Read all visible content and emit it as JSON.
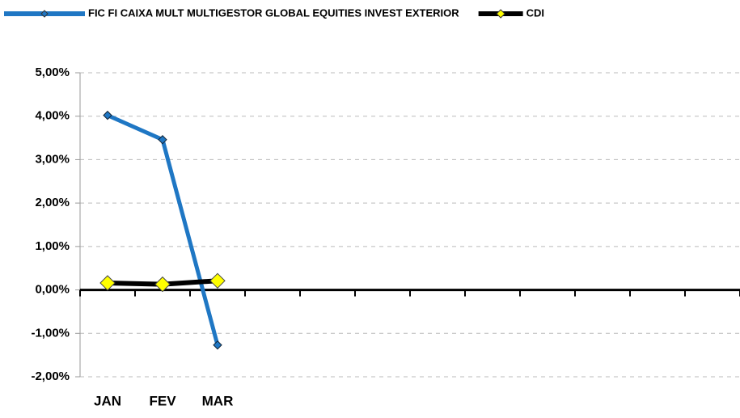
{
  "chart_data": {
    "type": "line",
    "categories": [
      "JAN",
      "FEV",
      "MAR",
      null,
      null,
      null,
      null,
      null,
      null,
      null,
      null,
      null
    ],
    "series": [
      {
        "name": "FIC FI CAIXA MULT MULTIGESTOR GLOBAL EQUITIES INVEST EXTERIOR",
        "color": "#1f77c4",
        "values": [
          4.02,
          3.46,
          -1.27,
          null,
          null,
          null,
          null,
          null,
          null,
          null,
          null,
          null
        ]
      },
      {
        "name": "CDI",
        "color": "#000000",
        "marker_color": "#ffff00",
        "values": [
          0.16,
          0.13,
          0.21,
          null,
          null,
          null,
          null,
          null,
          null,
          null,
          null,
          null
        ]
      }
    ],
    "ylim": [
      -2,
      5
    ],
    "yticks": [
      {
        "value": -2,
        "label": "-2,00%"
      },
      {
        "value": -1,
        "label": "-1,00%"
      },
      {
        "value": 0,
        "label": "0,00%"
      },
      {
        "value": 1,
        "label": "1,00%"
      },
      {
        "value": 2,
        "label": "2,00%"
      },
      {
        "value": 3,
        "label": "3,00%"
      },
      {
        "value": 4,
        "label": "4,00%"
      },
      {
        "value": 5,
        "label": "5,00%"
      }
    ],
    "grid": true,
    "legend": "top"
  }
}
